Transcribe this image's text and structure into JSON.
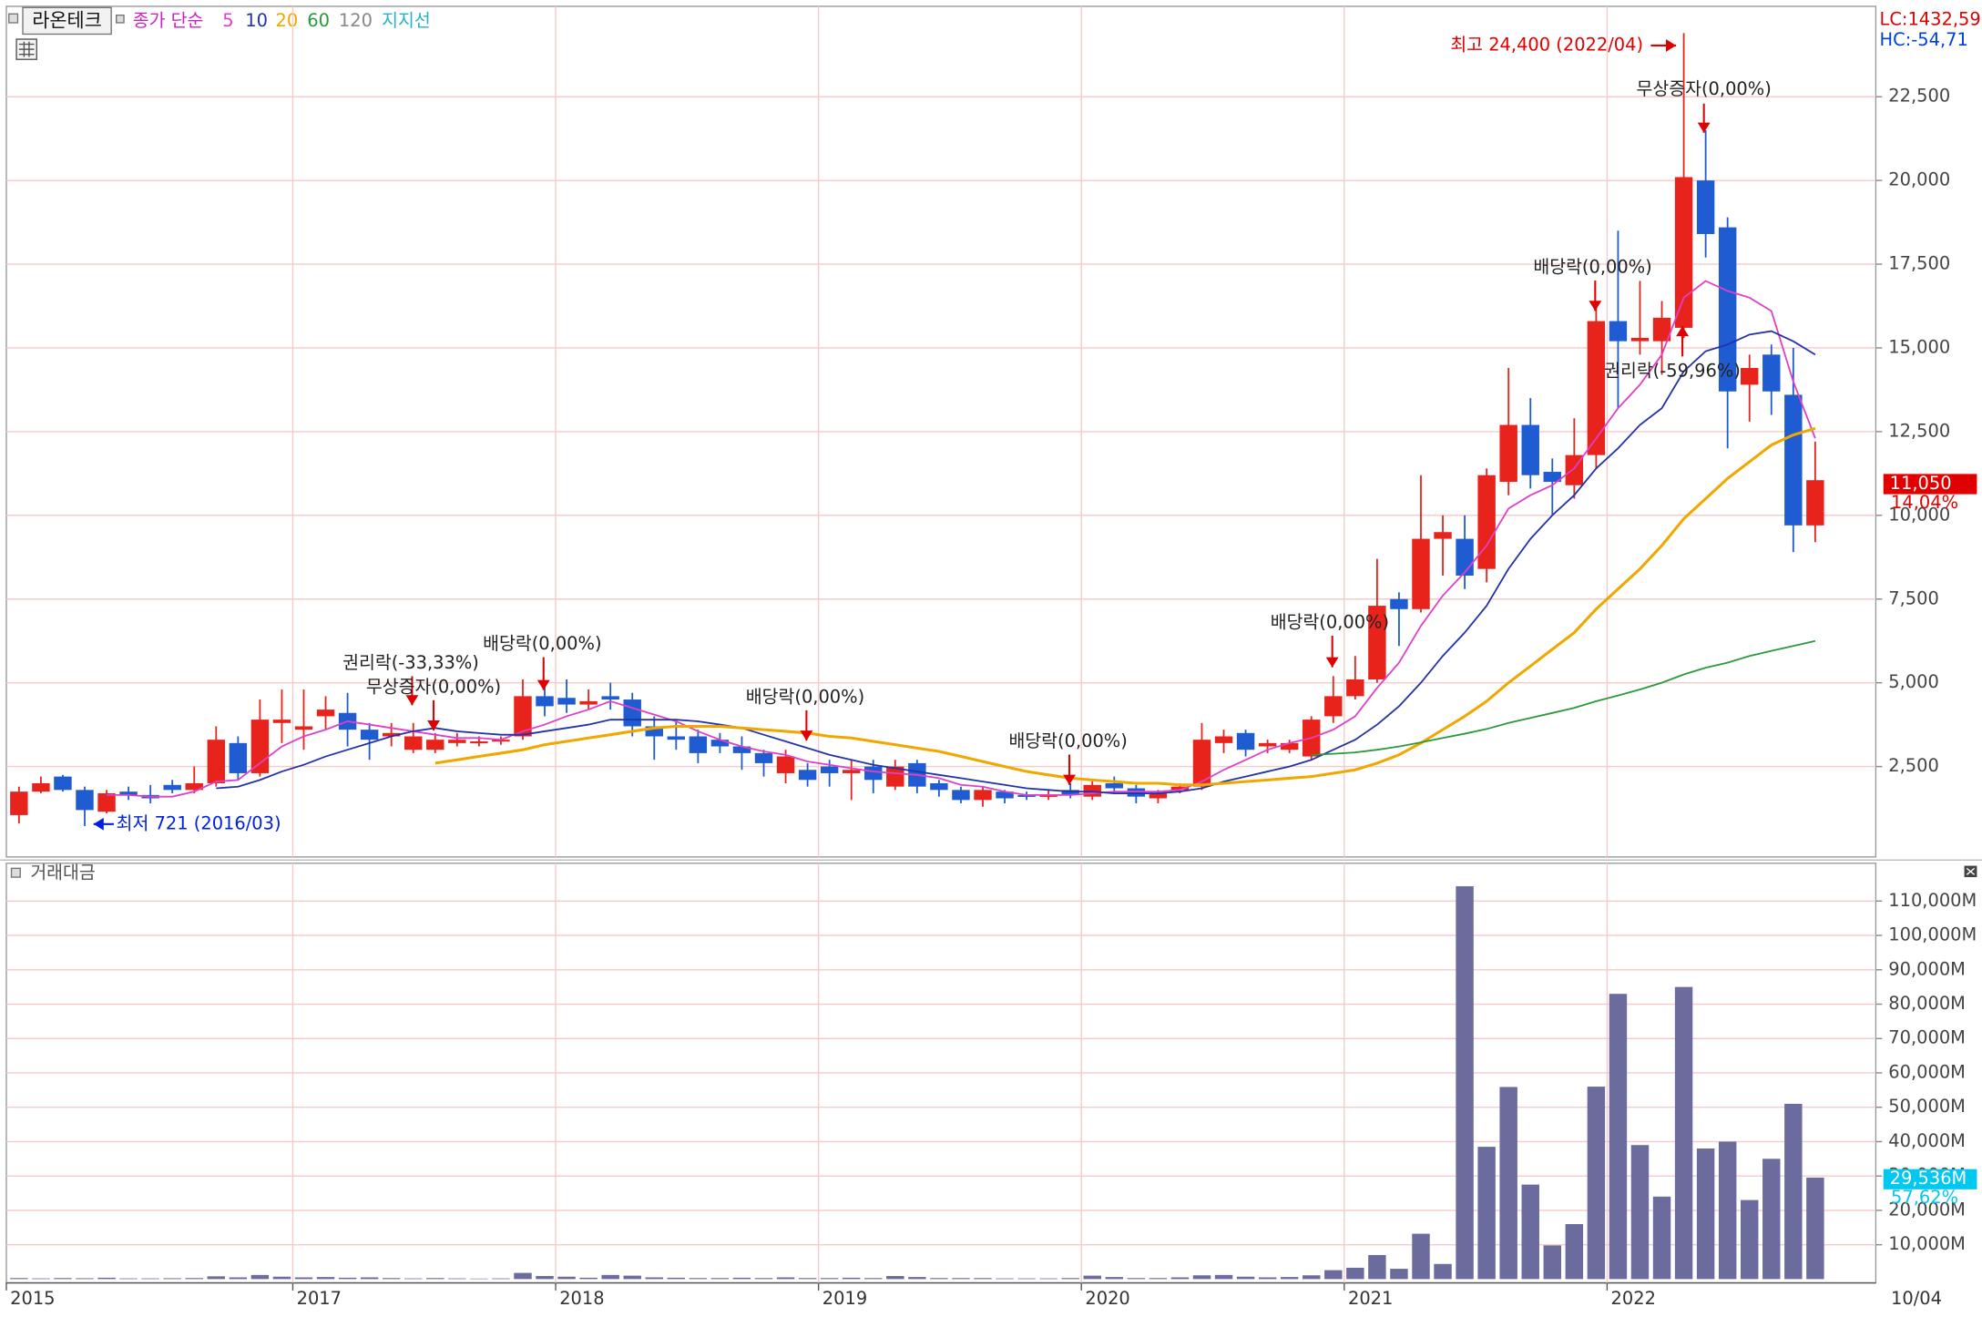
{
  "chart_data": [
    {
      "type": "candlestick",
      "title": "라온테크",
      "legend_label": "종가 단순",
      "up_color": "#e8231c",
      "down_color": "#1f5cd1",
      "open": [
        1050,
        1750,
        2200,
        1800,
        1150,
        1750,
        1650,
        1950,
        1800,
        2000,
        3200,
        2300,
        3800,
        3600,
        4000,
        4100,
        3600,
        3400,
        3000,
        3000,
        3200,
        3200,
        3250,
        3400,
        4600,
        4550,
        4350,
        4600,
        4500,
        3700,
        3400,
        3400,
        3300,
        3100,
        2900,
        2300,
        2400,
        2500,
        2300,
        2500,
        1900,
        2600,
        2000,
        1800,
        1500,
        1750,
        1650,
        1600,
        1800,
        1600,
        2000,
        1850,
        1550,
        1800,
        1900,
        3200,
        3500,
        3100,
        3000,
        2800,
        4000,
        4600,
        5100,
        7500,
        7200,
        9300,
        9300,
        8400,
        11000,
        12700,
        11300,
        10900,
        11800,
        15800,
        15200,
        15200,
        15600,
        20000,
        18600,
        13900,
        14800,
        13600,
        9700
      ],
      "high": [
        1900,
        2200,
        2250,
        1900,
        1800,
        1900,
        1950,
        2100,
        2500,
        3700,
        3400,
        4500,
        4800,
        4800,
        4600,
        4700,
        3800,
        3800,
        3800,
        3500,
        3500,
        3400,
        3400,
        5100,
        5000,
        5100,
        4800,
        5000,
        4700,
        4000,
        3900,
        3600,
        3500,
        3400,
        3000,
        3000,
        2600,
        2700,
        2700,
        2700,
        2700,
        2700,
        2100,
        1900,
        1900,
        1800,
        1750,
        1800,
        2000,
        2100,
        2200,
        1950,
        1800,
        2000,
        3800,
        3600,
        3600,
        3300,
        3300,
        4000,
        5200,
        5800,
        8700,
        7700,
        11200,
        10000,
        10000,
        11400,
        14400,
        13500,
        11700,
        12900,
        16200,
        18500,
        17000,
        16400,
        24400,
        21500,
        18900,
        14800,
        15100,
        15000,
        12200
      ],
      "low": [
        800,
        1700,
        1750,
        721,
        1100,
        1500,
        1400,
        1700,
        1700,
        1900,
        2100,
        2200,
        3200,
        3000,
        3600,
        3100,
        2700,
        3100,
        2900,
        2900,
        3100,
        3100,
        3150,
        3300,
        4000,
        4100,
        4200,
        4200,
        3400,
        2700,
        3000,
        2600,
        2900,
        2400,
        2200,
        2000,
        1900,
        1900,
        1500,
        1700,
        1800,
        1700,
        1600,
        1400,
        1300,
        1400,
        1500,
        1500,
        1550,
        1500,
        1700,
        1400,
        1400,
        1700,
        1800,
        2900,
        2800,
        2900,
        2900,
        2700,
        3800,
        4500,
        5000,
        6100,
        7100,
        8200,
        7800,
        8000,
        10600,
        10800,
        10000,
        10500,
        11400,
        13200,
        14800,
        14200,
        15300,
        17700,
        12000,
        12800,
        13000,
        8900,
        9200
      ],
      "close": [
        1750,
        2000,
        1800,
        1200,
        1700,
        1650,
        1550,
        1800,
        2000,
        3300,
        2300,
        3900,
        3900,
        3700,
        4200,
        3600,
        3300,
        3500,
        3400,
        3300,
        3300,
        3250,
        3300,
        4600,
        4300,
        4350,
        4450,
        4500,
        3700,
        3400,
        3300,
        2900,
        3100,
        2900,
        2600,
        2800,
        2100,
        2300,
        2400,
        2100,
        2500,
        1900,
        1800,
        1500,
        1800,
        1550,
        1600,
        1650,
        1650,
        1950,
        1850,
        1600,
        1700,
        1900,
        3300,
        3400,
        3000,
        3200,
        3200,
        3900,
        4600,
        5100,
        7300,
        7200,
        9300,
        9500,
        8200,
        11200,
        12700,
        11200,
        11000,
        11800,
        15800,
        15200,
        15300,
        15900,
        20100,
        18400,
        13700,
        14400,
        13700,
        9700,
        11050
      ],
      "series": [
        {
          "name": "5",
          "color": "#e040c8",
          "values": [
            null,
            null,
            null,
            null,
            1650,
            1650,
            1600,
            1600,
            1750,
            2050,
            2100,
            2600,
            3100,
            3400,
            3600,
            3850,
            3750,
            3650,
            3550,
            3450,
            3350,
            3350,
            3300,
            3550,
            3750,
            4000,
            4200,
            4450,
            4250,
            4050,
            3850,
            3550,
            3300,
            3100,
            2950,
            2850,
            2650,
            2550,
            2450,
            2350,
            2300,
            2250,
            2150,
            1950,
            1900,
            1750,
            1650,
            1650,
            1650,
            1700,
            1750,
            1750,
            1750,
            1800,
            2050,
            2400,
            2700,
            3000,
            3200,
            3350,
            3600,
            4000,
            4850,
            5600,
            6700,
            7600,
            8300,
            9100,
            10200,
            10600,
            10900,
            11400,
            12300,
            13200,
            13900,
            14800,
            16500,
            17000,
            16700,
            16500,
            16100,
            14000,
            12300
          ]
        },
        {
          "name": "10",
          "color": "#2233aa",
          "values": [
            null,
            null,
            null,
            null,
            null,
            null,
            null,
            null,
            null,
            1850,
            1900,
            2100,
            2350,
            2550,
            2800,
            3000,
            3200,
            3400,
            3550,
            3650,
            3550,
            3500,
            3450,
            3450,
            3550,
            3650,
            3750,
            3900,
            3900,
            3900,
            3900,
            3850,
            3750,
            3650,
            3450,
            3250,
            3050,
            2850,
            2700,
            2550,
            2450,
            2350,
            2250,
            2150,
            2050,
            1950,
            1850,
            1800,
            1750,
            1750,
            1700,
            1700,
            1700,
            1750,
            1850,
            2050,
            2200,
            2350,
            2500,
            2700,
            3000,
            3300,
            3750,
            4300,
            5000,
            5800,
            6500,
            7300,
            8400,
            9300,
            10000,
            10600,
            11400,
            12000,
            12700,
            13200,
            14300,
            14900,
            15100,
            15400,
            15500,
            15200,
            14800
          ]
        },
        {
          "name": "20",
          "color": "#f0a800",
          "values": [
            null,
            null,
            null,
            null,
            null,
            null,
            null,
            null,
            null,
            null,
            null,
            null,
            null,
            null,
            null,
            null,
            null,
            null,
            null,
            2600,
            2700,
            2800,
            2900,
            3000,
            3150,
            3250,
            3350,
            3450,
            3550,
            3650,
            3700,
            3700,
            3700,
            3650,
            3600,
            3550,
            3500,
            3400,
            3350,
            3250,
            3150,
            3050,
            2950,
            2800,
            2650,
            2500,
            2350,
            2250,
            2150,
            2100,
            2050,
            2000,
            2000,
            1950,
            1950,
            2000,
            2050,
            2100,
            2150,
            2200,
            2300,
            2400,
            2600,
            2850,
            3200,
            3600,
            4000,
            4450,
            5000,
            5500,
            6000,
            6500,
            7200,
            7800,
            8400,
            9100,
            9900,
            10500,
            11100,
            11600,
            12100,
            12400,
            12600
          ]
        },
        {
          "name": "60",
          "color": "#2a9a3a",
          "values": [
            null,
            null,
            null,
            null,
            null,
            null,
            null,
            null,
            null,
            null,
            null,
            null,
            null,
            null,
            null,
            null,
            null,
            null,
            null,
            null,
            null,
            null,
            null,
            null,
            null,
            null,
            null,
            null,
            null,
            null,
            null,
            null,
            null,
            null,
            null,
            null,
            null,
            null,
            null,
            null,
            null,
            null,
            null,
            null,
            null,
            null,
            null,
            null,
            null,
            null,
            null,
            null,
            null,
            null,
            null,
            null,
            null,
            null,
            null,
            2850,
            2880,
            2920,
            3000,
            3100,
            3220,
            3350,
            3480,
            3620,
            3800,
            3950,
            4100,
            4250,
            4450,
            4620,
            4800,
            5000,
            5250,
            5450,
            5600,
            5800,
            5950,
            6100,
            6250
          ]
        }
      ],
      "legend_extra": [
        {
          "name": "120",
          "color": "#888888"
        },
        {
          "name": "지지선",
          "color": "#2ab0c8"
        }
      ],
      "ylim": [
        -200,
        25200
      ],
      "yticks": [
        {
          "value": 2500,
          "label": "2,500"
        },
        {
          "value": 5000,
          "label": "5,000"
        },
        {
          "value": 7500,
          "label": "7,500"
        },
        {
          "value": 10000,
          "label": "10,000"
        },
        {
          "value": 12500,
          "label": "12,500"
        },
        {
          "value": 15000,
          "label": "15,000"
        },
        {
          "value": 17500,
          "label": "17,500"
        },
        {
          "value": 20000,
          "label": "20,000"
        },
        {
          "value": 22500,
          "label": "22,500"
        }
      ],
      "grid": true,
      "annotations": [
        {
          "text": "최고 24,400 (2022/04)",
          "color": "#e00000"
        },
        {
          "text": "무상증자(0,00%)",
          "color": "#222222"
        },
        {
          "text": "배당락(0,00%)",
          "color": "#222222"
        },
        {
          "text": "권리락(-59,96%)",
          "color": "#222222"
        },
        {
          "text": "배당락(0,00%)",
          "color": "#222222"
        },
        {
          "text": "배당락(0,00%)",
          "color": "#222222"
        },
        {
          "text": "배당락(0,00%)",
          "color": "#222222"
        },
        {
          "text": "배당락(0,00%)",
          "color": "#222222"
        },
        {
          "text": "권리락(-33,33%)",
          "color": "#222222"
        },
        {
          "text": "무상증자(0,00%)",
          "color": "#222222"
        },
        {
          "text": "최저 721 (2016/03)",
          "color": "#0020e0"
        }
      ],
      "indicators": [
        {
          "text": "LC:1432,59",
          "color": "#e00000"
        },
        {
          "text": "HC:-54,71",
          "color": "#0040e0"
        }
      ],
      "price_tag": {
        "label": "11,050",
        "change": "14,04%",
        "color": "#e00000"
      }
    },
    {
      "type": "bar",
      "title": "거래대금",
      "color": "#6b6b9e",
      "categories": [
        "2015",
        null,
        null,
        null,
        null,
        null,
        null,
        null,
        null,
        null,
        null,
        null,
        null,
        "2017",
        null,
        null,
        null,
        null,
        null,
        null,
        null,
        null,
        null,
        null,
        null,
        "2018",
        null,
        null,
        null,
        null,
        null,
        null,
        null,
        null,
        null,
        null,
        null,
        "2019",
        null,
        null,
        null,
        null,
        null,
        null,
        null,
        null,
        null,
        null,
        null,
        "2020",
        null,
        null,
        null,
        null,
        null,
        null,
        null,
        null,
        null,
        null,
        null,
        "2021",
        null,
        null,
        null,
        null,
        null,
        null,
        null,
        null,
        null,
        null,
        null,
        "2022",
        null,
        null,
        null,
        null,
        null,
        null,
        null,
        null,
        null
      ],
      "values": [
        300,
        200,
        300,
        250,
        400,
        200,
        200,
        250,
        300,
        800,
        500,
        1200,
        700,
        500,
        600,
        400,
        500,
        300,
        200,
        300,
        200,
        150,
        200,
        1800,
        900,
        700,
        400,
        1200,
        1000,
        500,
        400,
        300,
        300,
        400,
        300,
        500,
        300,
        300,
        400,
        300,
        900,
        600,
        300,
        300,
        300,
        200,
        200,
        200,
        300,
        1000,
        600,
        300,
        300,
        500,
        1100,
        1200,
        700,
        500,
        600,
        1100,
        2600,
        3300,
        7000,
        3000,
        13200,
        4400,
        114300,
        38500,
        55900,
        27500,
        9800,
        16000,
        56000,
        83000,
        39000,
        24000,
        85000,
        38000,
        40000,
        23000,
        35000,
        51000,
        29536
      ],
      "ylim": [
        -1100,
        121000
      ],
      "yticks": [
        {
          "value": 10000,
          "label": "10,000M"
        },
        {
          "value": 20000,
          "label": "20,000M"
        },
        {
          "value": 30000,
          "label": "30,000M"
        },
        {
          "value": 40000,
          "label": "40,000M"
        },
        {
          "value": 50000,
          "label": "50,000M"
        },
        {
          "value": 60000,
          "label": "60,000M"
        },
        {
          "value": 70000,
          "label": "70,000M"
        },
        {
          "value": 80000,
          "label": "80,000M"
        },
        {
          "value": 90000,
          "label": "90,000M"
        },
        {
          "value": 100000,
          "label": "100,000M"
        },
        {
          "value": 110000,
          "label": "110,000M"
        }
      ],
      "grid": true,
      "value_tag": {
        "label": "29,536M",
        "change": "57,62%",
        "color": "#00c8f0"
      },
      "date_label": "10/04"
    }
  ]
}
